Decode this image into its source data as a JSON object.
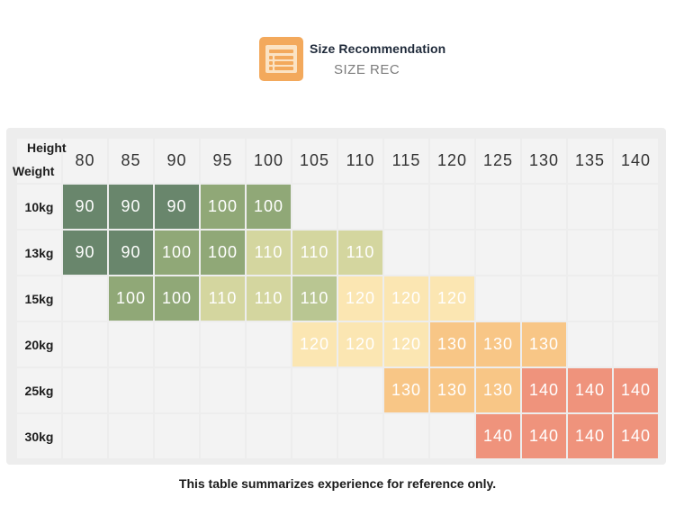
{
  "header": {
    "title": "Size Recommendation",
    "subtitle": "SIZE REC",
    "icon": "size-chart-icon"
  },
  "table": {
    "corner_top": "Height",
    "corner_bottom": "Weight",
    "heights": [
      "80",
      "85",
      "90",
      "95",
      "100",
      "105",
      "110",
      "115",
      "120",
      "125",
      "130",
      "135",
      "140"
    ],
    "rows": [
      {
        "weight": "10kg",
        "cells": [
          "90",
          "90",
          "90",
          "100",
          "100",
          "",
          "",
          "",
          "",
          "",
          "",
          "",
          ""
        ]
      },
      {
        "weight": "13kg",
        "cells": [
          "90",
          "90",
          "100",
          "100",
          "110",
          "110",
          "110",
          "",
          "",
          "",
          "",
          "",
          ""
        ]
      },
      {
        "weight": "15kg",
        "cells": [
          "",
          "100",
          "100",
          "110",
          "110",
          "110",
          "120",
          "120",
          "120",
          "",
          "",
          "",
          ""
        ]
      },
      {
        "weight": "20kg",
        "cells": [
          "",
          "",
          "",
          "",
          "",
          "120",
          "120",
          "120",
          "130",
          "130",
          "130",
          "",
          ""
        ]
      },
      {
        "weight": "25kg",
        "cells": [
          "",
          "",
          "",
          "",
          "",
          "",
          "",
          "130",
          "130",
          "130",
          "140",
          "140",
          "140"
        ]
      },
      {
        "weight": "30kg",
        "cells": [
          "",
          "",
          "",
          "",
          "",
          "",
          "",
          "",
          "",
          "140",
          "140",
          "140",
          "140"
        ]
      }
    ],
    "size_colors": {
      "90": "#69866c",
      "100": "#90a877",
      "110": "#d4d69f",
      "120": "#fbe6b2",
      "130": "#f8c686",
      "140": "#ef937c"
    },
    "row_cell_colors": {
      "2-5": "#b9c692"
    }
  },
  "footnote": "This table summarizes experience for reference only."
}
